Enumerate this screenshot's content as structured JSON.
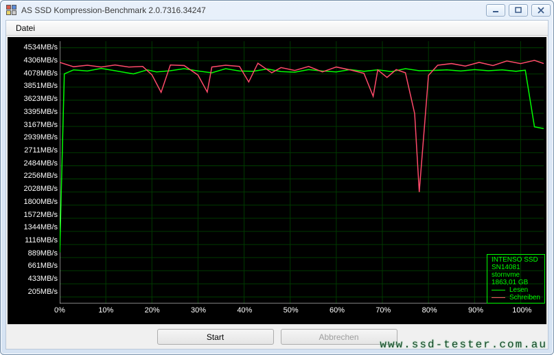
{
  "window": {
    "title": "AS SSD Kompression-Benchmark 2.0.7316.34247"
  },
  "menu": {
    "file": "Datei"
  },
  "chart": {
    "type": "line",
    "background_color": "#000000",
    "grid_color": "#003a00",
    "axis_color": "#ffffff",
    "label_color": "#ffffff",
    "label_fontsize": 11,
    "x_unit": "%",
    "y_unit": "MB/s",
    "xlim": [
      0,
      105
    ],
    "ylim": [
      92,
      4648
    ],
    "y_ticks": [
      205,
      433,
      661,
      889,
      1116,
      1344,
      1572,
      1800,
      2028,
      2256,
      2484,
      2711,
      2939,
      3167,
      3395,
      3623,
      3851,
      4078,
      4306,
      4534
    ],
    "x_ticks": [
      0,
      10,
      20,
      30,
      40,
      50,
      60,
      70,
      80,
      90,
      100
    ],
    "series": {
      "read": {
        "label": "Lesen",
        "color": "#00ff00",
        "line_width": 1.5,
        "points": [
          [
            0,
            980
          ],
          [
            1,
            4080
          ],
          [
            3,
            4150
          ],
          [
            6,
            4130
          ],
          [
            9,
            4175
          ],
          [
            12,
            4135
          ],
          [
            16,
            4080
          ],
          [
            19,
            4150
          ],
          [
            21,
            4115
          ],
          [
            24,
            4135
          ],
          [
            27,
            4170
          ],
          [
            30,
            4130
          ],
          [
            33,
            4100
          ],
          [
            36,
            4170
          ],
          [
            39,
            4130
          ],
          [
            42,
            4125
          ],
          [
            45,
            4165
          ],
          [
            48,
            4120
          ],
          [
            51,
            4110
          ],
          [
            54,
            4155
          ],
          [
            57,
            4130
          ],
          [
            60,
            4115
          ],
          [
            63,
            4155
          ],
          [
            66,
            4125
          ],
          [
            69,
            4150
          ],
          [
            72,
            4120
          ],
          [
            75,
            4170
          ],
          [
            78,
            4135
          ],
          [
            81,
            4140
          ],
          [
            84,
            4150
          ],
          [
            87,
            4130
          ],
          [
            90,
            4155
          ],
          [
            93,
            4135
          ],
          [
            96,
            4150
          ],
          [
            99,
            4125
          ],
          [
            101,
            4145
          ],
          [
            103,
            3160
          ],
          [
            105,
            3130
          ]
        ]
      },
      "write": {
        "label": "Schreiben",
        "color": "#ff4a6a",
        "line_width": 1.5,
        "points": [
          [
            0,
            4280
          ],
          [
            3,
            4205
          ],
          [
            6,
            4230
          ],
          [
            9,
            4200
          ],
          [
            12,
            4235
          ],
          [
            15,
            4200
          ],
          [
            18,
            4210
          ],
          [
            20,
            4065
          ],
          [
            22,
            3760
          ],
          [
            24,
            4235
          ],
          [
            27,
            4225
          ],
          [
            30,
            4060
          ],
          [
            32,
            3765
          ],
          [
            33,
            4200
          ],
          [
            36,
            4230
          ],
          [
            39,
            4210
          ],
          [
            41,
            3940
          ],
          [
            43,
            4265
          ],
          [
            46,
            4100
          ],
          [
            48,
            4190
          ],
          [
            51,
            4140
          ],
          [
            54,
            4210
          ],
          [
            57,
            4115
          ],
          [
            60,
            4200
          ],
          [
            63,
            4150
          ],
          [
            66,
            4090
          ],
          [
            68,
            3690
          ],
          [
            69,
            4150
          ],
          [
            71,
            4020
          ],
          [
            73,
            4155
          ],
          [
            75,
            4100
          ],
          [
            77,
            3390
          ],
          [
            78,
            2028
          ],
          [
            80,
            4055
          ],
          [
            82,
            4230
          ],
          [
            85,
            4260
          ],
          [
            88,
            4215
          ],
          [
            91,
            4280
          ],
          [
            94,
            4225
          ],
          [
            97,
            4305
          ],
          [
            100,
            4260
          ],
          [
            103,
            4315
          ],
          [
            105,
            4260
          ]
        ]
      }
    }
  },
  "legend": {
    "border_color": "#00ff00",
    "text_color": "#00ff00",
    "fontsize": 10,
    "device": "INTENSO SSD",
    "serial": "SN14081",
    "driver": "stornvme",
    "capacity": "1863,01 GB"
  },
  "buttons": {
    "start": "Start",
    "abort": "Abbrechen"
  },
  "watermark": "www.ssd-tester.com.au"
}
